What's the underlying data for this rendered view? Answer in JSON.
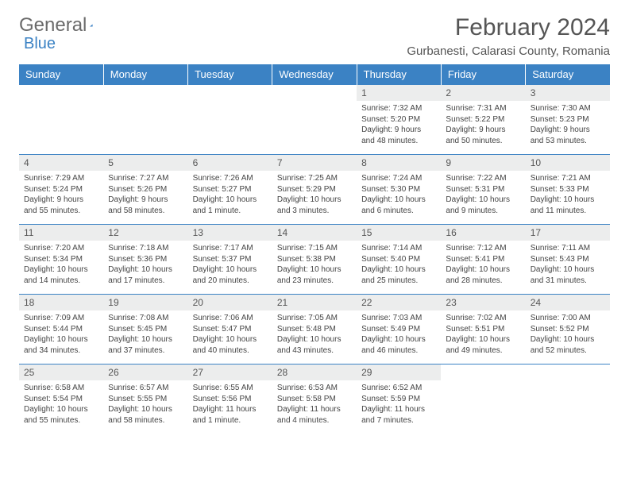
{
  "logo": {
    "text1": "General",
    "text2": "Blue"
  },
  "title": "February 2024",
  "location": "Gurbanesti, Calarasi County, Romania",
  "colors": {
    "header_bg": "#3b82c4",
    "header_text": "#ffffff",
    "daynum_bg": "#eceded",
    "text": "#555555",
    "border": "#3b82c4"
  },
  "weekdays": [
    "Sunday",
    "Monday",
    "Tuesday",
    "Wednesday",
    "Thursday",
    "Friday",
    "Saturday"
  ],
  "prefix": {
    "sunrise": "Sunrise: ",
    "sunset": "Sunset: ",
    "daylight": "Daylight: "
  },
  "days": [
    {
      "n": "1",
      "sr": "7:32 AM",
      "ss": "5:20 PM",
      "dl": "9 hours and 48 minutes."
    },
    {
      "n": "2",
      "sr": "7:31 AM",
      "ss": "5:22 PM",
      "dl": "9 hours and 50 minutes."
    },
    {
      "n": "3",
      "sr": "7:30 AM",
      "ss": "5:23 PM",
      "dl": "9 hours and 53 minutes."
    },
    {
      "n": "4",
      "sr": "7:29 AM",
      "ss": "5:24 PM",
      "dl": "9 hours and 55 minutes."
    },
    {
      "n": "5",
      "sr": "7:27 AM",
      "ss": "5:26 PM",
      "dl": "9 hours and 58 minutes."
    },
    {
      "n": "6",
      "sr": "7:26 AM",
      "ss": "5:27 PM",
      "dl": "10 hours and 1 minute."
    },
    {
      "n": "7",
      "sr": "7:25 AM",
      "ss": "5:29 PM",
      "dl": "10 hours and 3 minutes."
    },
    {
      "n": "8",
      "sr": "7:24 AM",
      "ss": "5:30 PM",
      "dl": "10 hours and 6 minutes."
    },
    {
      "n": "9",
      "sr": "7:22 AM",
      "ss": "5:31 PM",
      "dl": "10 hours and 9 minutes."
    },
    {
      "n": "10",
      "sr": "7:21 AM",
      "ss": "5:33 PM",
      "dl": "10 hours and 11 minutes."
    },
    {
      "n": "11",
      "sr": "7:20 AM",
      "ss": "5:34 PM",
      "dl": "10 hours and 14 minutes."
    },
    {
      "n": "12",
      "sr": "7:18 AM",
      "ss": "5:36 PM",
      "dl": "10 hours and 17 minutes."
    },
    {
      "n": "13",
      "sr": "7:17 AM",
      "ss": "5:37 PM",
      "dl": "10 hours and 20 minutes."
    },
    {
      "n": "14",
      "sr": "7:15 AM",
      "ss": "5:38 PM",
      "dl": "10 hours and 23 minutes."
    },
    {
      "n": "15",
      "sr": "7:14 AM",
      "ss": "5:40 PM",
      "dl": "10 hours and 25 minutes."
    },
    {
      "n": "16",
      "sr": "7:12 AM",
      "ss": "5:41 PM",
      "dl": "10 hours and 28 minutes."
    },
    {
      "n": "17",
      "sr": "7:11 AM",
      "ss": "5:43 PM",
      "dl": "10 hours and 31 minutes."
    },
    {
      "n": "18",
      "sr": "7:09 AM",
      "ss": "5:44 PM",
      "dl": "10 hours and 34 minutes."
    },
    {
      "n": "19",
      "sr": "7:08 AM",
      "ss": "5:45 PM",
      "dl": "10 hours and 37 minutes."
    },
    {
      "n": "20",
      "sr": "7:06 AM",
      "ss": "5:47 PM",
      "dl": "10 hours and 40 minutes."
    },
    {
      "n": "21",
      "sr": "7:05 AM",
      "ss": "5:48 PM",
      "dl": "10 hours and 43 minutes."
    },
    {
      "n": "22",
      "sr": "7:03 AM",
      "ss": "5:49 PM",
      "dl": "10 hours and 46 minutes."
    },
    {
      "n": "23",
      "sr": "7:02 AM",
      "ss": "5:51 PM",
      "dl": "10 hours and 49 minutes."
    },
    {
      "n": "24",
      "sr": "7:00 AM",
      "ss": "5:52 PM",
      "dl": "10 hours and 52 minutes."
    },
    {
      "n": "25",
      "sr": "6:58 AM",
      "ss": "5:54 PM",
      "dl": "10 hours and 55 minutes."
    },
    {
      "n": "26",
      "sr": "6:57 AM",
      "ss": "5:55 PM",
      "dl": "10 hours and 58 minutes."
    },
    {
      "n": "27",
      "sr": "6:55 AM",
      "ss": "5:56 PM",
      "dl": "11 hours and 1 minute."
    },
    {
      "n": "28",
      "sr": "6:53 AM",
      "ss": "5:58 PM",
      "dl": "11 hours and 4 minutes."
    },
    {
      "n": "29",
      "sr": "6:52 AM",
      "ss": "5:59 PM",
      "dl": "11 hours and 7 minutes."
    }
  ],
  "layout": {
    "leading_blanks": 4,
    "trailing_blanks": 2,
    "cols": 7
  }
}
